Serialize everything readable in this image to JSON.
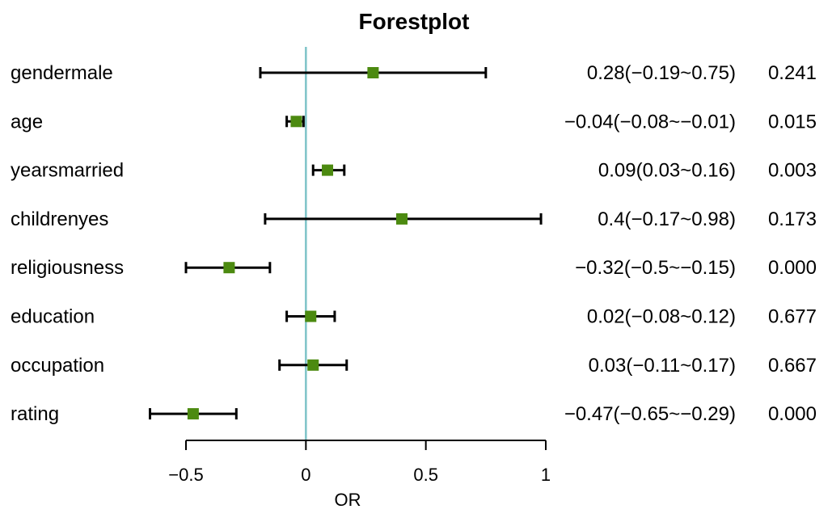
{
  "chart_data": {
    "type": "forest",
    "title": "Forestplot",
    "xlabel": "OR",
    "ylabel": "",
    "xlim": [
      -0.5,
      1
    ],
    "xticks": [
      -0.5,
      0,
      0.5,
      1
    ],
    "xtick_labels": [
      "−0.5",
      "0",
      "0.5",
      "1"
    ],
    "reference_line": 0,
    "colors": {
      "marker": "#4c8a10",
      "reference_line": "#7ec4c8",
      "whisker": "#000000"
    },
    "rows": [
      {
        "label": "gendermale",
        "estimate": 0.28,
        "lower": -0.19,
        "upper": 0.75,
        "ci_text": "0.28(−0.19~0.75)",
        "p_text": "0.241"
      },
      {
        "label": "age",
        "estimate": -0.04,
        "lower": -0.08,
        "upper": -0.01,
        "ci_text": "−0.04(−0.08~−0.01)",
        "p_text": "0.015"
      },
      {
        "label": "yearsmarried",
        "estimate": 0.09,
        "lower": 0.03,
        "upper": 0.16,
        "ci_text": "0.09(0.03~0.16)",
        "p_text": "0.003"
      },
      {
        "label": "childrenyes",
        "estimate": 0.4,
        "lower": -0.17,
        "upper": 0.98,
        "ci_text": "0.4(−0.17~0.98)",
        "p_text": "0.173"
      },
      {
        "label": "religiousness",
        "estimate": -0.32,
        "lower": -0.5,
        "upper": -0.15,
        "ci_text": "−0.32(−0.5~−0.15)",
        "p_text": "0.000"
      },
      {
        "label": "education",
        "estimate": 0.02,
        "lower": -0.08,
        "upper": 0.12,
        "ci_text": "0.02(−0.08~0.12)",
        "p_text": "0.677"
      },
      {
        "label": "occupation",
        "estimate": 0.03,
        "lower": -0.11,
        "upper": 0.17,
        "ci_text": "0.03(−0.11~0.17)",
        "p_text": "0.667"
      },
      {
        "label": "rating",
        "estimate": -0.47,
        "lower": -0.65,
        "upper": -0.29,
        "ci_text": "−0.47(−0.65~−0.29)",
        "p_text": "0.000"
      }
    ]
  }
}
